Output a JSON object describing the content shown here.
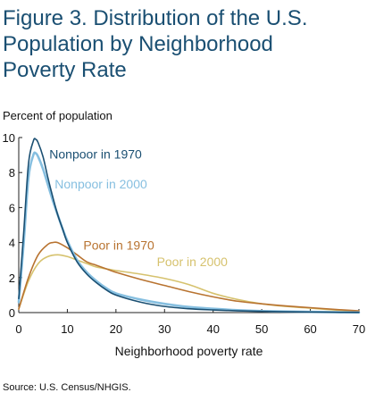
{
  "chart_data": {
    "type": "line",
    "title_lines": [
      "Figure 3. Distribution of the U.S.",
      "Population by Neighborhood",
      "Poverty Rate"
    ],
    "ylabel": "Percent of population",
    "xlabel": "Neighborhood poverty rate",
    "xlim": [
      0,
      70
    ],
    "ylim": [
      0,
      10
    ],
    "xticks": [
      0,
      10,
      20,
      30,
      40,
      50,
      60,
      70
    ],
    "yticks": [
      0,
      2,
      4,
      6,
      8,
      10
    ],
    "grid": false,
    "series": [
      {
        "name": "Nonpoor in 1970",
        "color": "#1a4f72",
        "points": [
          [
            0,
            0.8
          ],
          [
            1,
            4.5
          ],
          [
            2,
            8.5
          ],
          [
            3,
            9.8
          ],
          [
            3.5,
            9.9
          ],
          [
            4,
            9.7
          ],
          [
            5,
            8.9
          ],
          [
            6,
            7.7
          ],
          [
            7,
            6.6
          ],
          [
            8,
            5.6
          ],
          [
            9,
            4.8
          ],
          [
            10,
            4.0
          ],
          [
            12,
            2.9
          ],
          [
            14,
            2.2
          ],
          [
            16,
            1.7
          ],
          [
            18,
            1.3
          ],
          [
            20,
            1.0
          ],
          [
            25,
            0.6
          ],
          [
            30,
            0.35
          ],
          [
            35,
            0.22
          ],
          [
            40,
            0.15
          ],
          [
            45,
            0.1
          ],
          [
            50,
            0.07
          ],
          [
            55,
            0.05
          ],
          [
            60,
            0.03
          ],
          [
            65,
            0.02
          ],
          [
            70,
            0.01
          ]
        ]
      },
      {
        "name": "Nonpoor in 2000",
        "color": "#86bfe0",
        "points": [
          [
            0,
            0.6
          ],
          [
            1,
            3.9
          ],
          [
            2,
            7.7
          ],
          [
            3,
            9.0
          ],
          [
            3.5,
            9.1
          ],
          [
            4,
            8.9
          ],
          [
            5,
            8.2
          ],
          [
            6,
            7.3
          ],
          [
            7,
            6.4
          ],
          [
            8,
            5.6
          ],
          [
            9,
            4.8
          ],
          [
            10,
            4.1
          ],
          [
            12,
            3.0
          ],
          [
            14,
            2.3
          ],
          [
            16,
            1.8
          ],
          [
            18,
            1.4
          ],
          [
            20,
            1.1
          ],
          [
            25,
            0.75
          ],
          [
            30,
            0.5
          ],
          [
            35,
            0.32
          ],
          [
            40,
            0.22
          ],
          [
            45,
            0.14
          ],
          [
            50,
            0.09
          ],
          [
            55,
            0.06
          ],
          [
            60,
            0.04
          ],
          [
            65,
            0.02
          ],
          [
            70,
            0.01
          ]
        ]
      },
      {
        "name": "Poor in 1970",
        "color": "#b87330",
        "points": [
          [
            0,
            0.2
          ],
          [
            2,
            2.0
          ],
          [
            4,
            3.3
          ],
          [
            6,
            3.9
          ],
          [
            7,
            4.0
          ],
          [
            8,
            4.0
          ],
          [
            10,
            3.7
          ],
          [
            12,
            3.3
          ],
          [
            14,
            2.9
          ],
          [
            16,
            2.7
          ],
          [
            18,
            2.5
          ],
          [
            20,
            2.3
          ],
          [
            25,
            1.9
          ],
          [
            30,
            1.55
          ],
          [
            35,
            1.2
          ],
          [
            40,
            0.9
          ],
          [
            45,
            0.65
          ],
          [
            50,
            0.5
          ],
          [
            55,
            0.38
          ],
          [
            60,
            0.28
          ],
          [
            65,
            0.18
          ],
          [
            70,
            0.1
          ]
        ]
      },
      {
        "name": "Poor in 2000",
        "color": "#d6c26e",
        "points": [
          [
            0,
            0.2
          ],
          [
            2,
            1.8
          ],
          [
            4,
            2.8
          ],
          [
            6,
            3.2
          ],
          [
            8,
            3.3
          ],
          [
            10,
            3.2
          ],
          [
            12,
            3.0
          ],
          [
            14,
            2.8
          ],
          [
            16,
            2.6
          ],
          [
            18,
            2.5
          ],
          [
            20,
            2.4
          ],
          [
            25,
            2.2
          ],
          [
            30,
            1.95
          ],
          [
            35,
            1.6
          ],
          [
            40,
            1.1
          ],
          [
            45,
            0.75
          ],
          [
            50,
            0.5
          ],
          [
            55,
            0.35
          ],
          [
            60,
            0.25
          ],
          [
            65,
            0.15
          ],
          [
            70,
            0.08
          ]
        ]
      }
    ],
    "annotations": [
      {
        "text": "Nonpoor in 1970",
        "series": 0,
        "x": 6.3,
        "y": 8.8
      },
      {
        "text": "Nonpoor in 2000",
        "series": 1,
        "x": 7.4,
        "y": 7.1
      },
      {
        "text": "Poor in 1970",
        "series": 2,
        "x": 13.3,
        "y": 3.6
      },
      {
        "text": "Poor in 2000",
        "series": 3,
        "x": 28.4,
        "y": 2.65
      }
    ],
    "source": "Source:  U.S. Census/NHGIS."
  }
}
